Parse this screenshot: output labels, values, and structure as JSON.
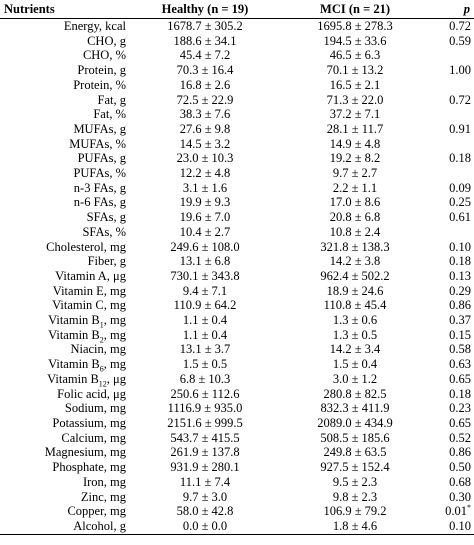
{
  "headers": {
    "nutrients": "Nutrients",
    "healthy": "Healthy (n = 19)",
    "mci": "MCI (n = 21)",
    "p": "p"
  },
  "rows": [
    {
      "name": "Energy, kcal",
      "healthy": "1678.7 ± 305.2",
      "mci": "1695.8 ± 278.3",
      "p": "0.72"
    },
    {
      "name": "CHO, g",
      "healthy": "188.6 ± 34.1",
      "mci": "194.5 ± 33.6",
      "p": "0.59"
    },
    {
      "name": "CHO, %",
      "healthy": "45.4 ± 7.2",
      "mci": "46.5 ± 6.3",
      "p": ""
    },
    {
      "name": "Protein, g",
      "healthy": "70.3 ± 16.4",
      "mci": "70.1 ± 13.2",
      "p": "1.00"
    },
    {
      "name": "Protein, %",
      "healthy": "16.8 ± 2.6",
      "mci": "16.5 ± 2.1",
      "p": ""
    },
    {
      "name": "Fat, g",
      "healthy": "72.5 ± 22.9",
      "mci": "71.3 ± 22.0",
      "p": "0.72"
    },
    {
      "name": "Fat, %",
      "healthy": "38.3 ± 7.6",
      "mci": "37.2 ± 7.1",
      "p": ""
    },
    {
      "name": "MUFAs, g",
      "healthy": "27.6 ± 9.8",
      "mci": "28.1 ± 11.7",
      "p": "0.91"
    },
    {
      "name": "MUFAs, %",
      "healthy": "14.5 ± 3.2",
      "mci": "14.9 ± 4.8",
      "p": ""
    },
    {
      "name": "PUFAs, g",
      "healthy": "23.0 ± 10.3",
      "mci": "19.2 ± 8.2",
      "p": "0.18"
    },
    {
      "name": "PUFAs, %",
      "healthy": "12.2 ± 4.8",
      "mci": "9.7 ± 2.7",
      "p": ""
    },
    {
      "name": "n-3 FAs, g",
      "healthy": "3.1 ± 1.6",
      "mci": "2.2 ± 1.1",
      "p": "0.09"
    },
    {
      "name": "n-6 FAs, g",
      "healthy": "19.9 ± 9.3",
      "mci": "17.0 ± 8.6",
      "p": "0.25"
    },
    {
      "name": "SFAs, g",
      "healthy": "19.6 ± 7.0",
      "mci": "20.8 ± 6.8",
      "p": "0.61"
    },
    {
      "name": "SFAs, %",
      "healthy": "10.4 ± 2.7",
      "mci": "10.8 ± 2.4",
      "p": ""
    },
    {
      "name": "Cholesterol, mg",
      "healthy": "249.6 ± 108.0",
      "mci": "321.8 ± 138.3",
      "p": "0.10"
    },
    {
      "name": "Fiber, g",
      "healthy": "13.1 ± 6.8",
      "mci": "14.2 ± 3.8",
      "p": "0.18"
    },
    {
      "name": "Vitamin A, μg",
      "healthy": "730.1 ± 343.8",
      "mci": "962.4 ± 502.2",
      "p": "0.13"
    },
    {
      "name": "Vitamin E, mg",
      "healthy": "9.4 ± 7.1",
      "mci": "18.9 ± 24.6",
      "p": "0.29"
    },
    {
      "name": "Vitamin C, mg",
      "healthy": "110.9 ± 64.2",
      "mci": "110.8 ± 45.4",
      "p": "0.86"
    },
    {
      "name": "Vitamin B",
      "sub": "1",
      "unit": ", mg",
      "healthy": "1.1 ± 0.4",
      "mci": "1.3 ± 0.6",
      "p": "0.37"
    },
    {
      "name": "Vitamin B",
      "sub": "2",
      "unit": ", mg",
      "healthy": "1.1 ± 0.4",
      "mci": "1.3 ± 0.5",
      "p": "0.15"
    },
    {
      "name": "Niacin, mg",
      "healthy": "13.1 ± 3.7",
      "mci": "14.2 ± 3.4",
      "p": "0.58"
    },
    {
      "name": "Vitamin B",
      "sub": "6",
      "unit": ", mg",
      "healthy": "1.5 ± 0.5",
      "mci": "1.5 ± 0.4",
      "p": "0.63"
    },
    {
      "name": "Vitamin B",
      "sub": "12",
      "unit": ", μg",
      "healthy": "6.8 ± 10.3",
      "mci": "3.0 ± 1.2",
      "p": "0.65"
    },
    {
      "name": "Folic acid, μg",
      "healthy": "250.6 ± 112.6",
      "mci": "280.8 ± 82.5",
      "p": "0.18"
    },
    {
      "name": "Sodium, mg",
      "healthy": "1116.9 ± 935.0",
      "mci": "832.3 ± 411.9",
      "p": "0.23"
    },
    {
      "name": "Potassium, mg",
      "healthy": "2151.6 ± 999.5",
      "mci": "2089.0 ± 434.9",
      "p": "0.65"
    },
    {
      "name": "Calcium, mg",
      "healthy": "543.7 ± 415.5",
      "mci": "508.5 ± 185.6",
      "p": "0.52"
    },
    {
      "name": "Magnesium, mg",
      "healthy": "261.9 ± 137.8",
      "mci": "249.8 ± 63.5",
      "p": "0.86"
    },
    {
      "name": "Phosphate, mg",
      "healthy": "931.9 ± 280.1",
      "mci": "927.5 ± 152.4",
      "p": "0.50"
    },
    {
      "name": "Iron, mg",
      "healthy": "11.1 ± 7.4",
      "mci": "9.5 ± 2.3",
      "p": "0.68"
    },
    {
      "name": "Zinc, mg",
      "healthy": "9.7 ± 3.0",
      "mci": "9.8 ± 2.3",
      "p": "0.30"
    },
    {
      "name": "Copper, mg",
      "healthy": "58.0 ± 42.8",
      "mci": "106.9 ± 79.2",
      "p": "0.01",
      "mark": "*"
    },
    {
      "name": "Alcohol, g",
      "healthy": "0.0 ± 0.0",
      "mci": "1.8 ± 4.6",
      "p": "0.10"
    }
  ]
}
